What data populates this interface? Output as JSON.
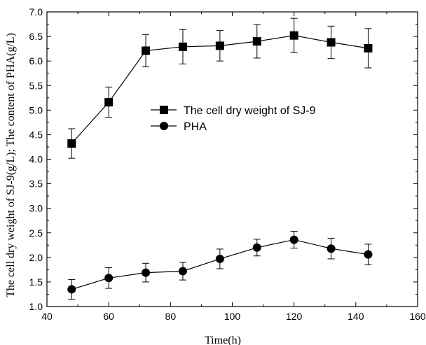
{
  "chart_data": {
    "type": "line",
    "xlabel": "Time(h)",
    "ylabel": "The cell dry weight of SJ-9(g/L); The content of PHA(g/L)",
    "xlim": [
      40,
      160
    ],
    "ylim": [
      1.0,
      7.0
    ],
    "xticks": [
      40,
      60,
      80,
      100,
      120,
      140,
      160
    ],
    "yticks": [
      1.0,
      1.5,
      2.0,
      2.5,
      3.0,
      3.5,
      4.0,
      4.5,
      5.0,
      5.5,
      6.0,
      6.5,
      7.0
    ],
    "grid": false,
    "legend_position": "center",
    "series": [
      {
        "name": "The cell dry weight of SJ-9",
        "marker": "square",
        "x": [
          48,
          60,
          72,
          84,
          96,
          108,
          120,
          132,
          144
        ],
        "y": [
          4.32,
          5.16,
          6.21,
          6.29,
          6.31,
          6.4,
          6.52,
          6.38,
          6.26
        ],
        "error": [
          0.3,
          0.31,
          0.33,
          0.35,
          0.31,
          0.34,
          0.35,
          0.33,
          0.4
        ]
      },
      {
        "name": "PHA",
        "marker": "circle",
        "x": [
          48,
          60,
          72,
          84,
          96,
          108,
          120,
          132,
          144
        ],
        "y": [
          1.35,
          1.58,
          1.69,
          1.72,
          1.97,
          2.2,
          2.36,
          2.18,
          2.06
        ],
        "error": [
          0.2,
          0.21,
          0.19,
          0.18,
          0.2,
          0.17,
          0.17,
          0.21,
          0.21
        ]
      }
    ]
  }
}
